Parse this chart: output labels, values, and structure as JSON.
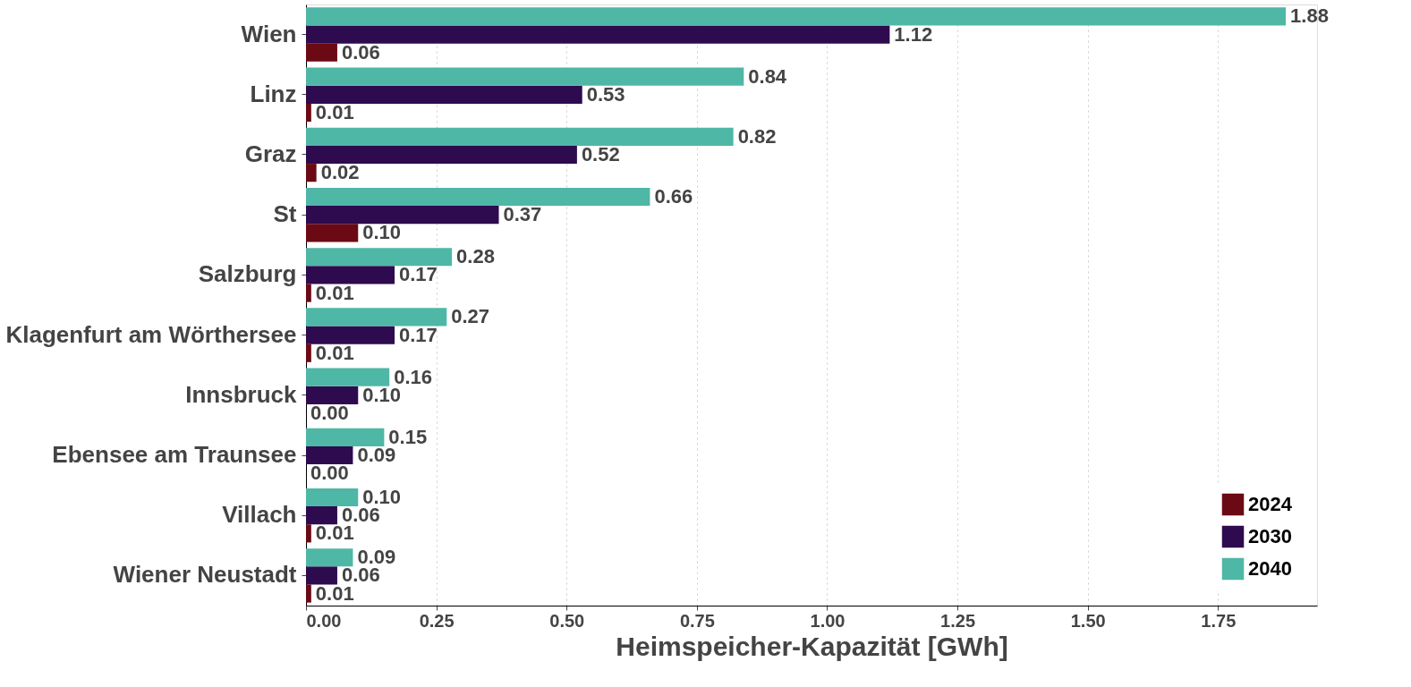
{
  "chart_data": {
    "type": "bar",
    "orientation": "horizontal",
    "xlabel": "Heimspeicher-Kapazität [GWh]",
    "categories": [
      "Wien",
      "Linz",
      "Graz",
      "St",
      "Salzburg",
      "Klagenfurt am Wörthersee",
      "Innsbruck",
      "Ebensee am Traunsee",
      "Villach",
      "Wiener Neustadt"
    ],
    "series": [
      {
        "name": "2024",
        "color": "#6b0a14",
        "values": [
          0.06,
          0.01,
          0.02,
          0.1,
          0.01,
          0.01,
          0.0,
          0.0,
          0.01,
          0.01
        ],
        "value_labels": [
          "0.06",
          "0.01",
          "0.02",
          "0.10",
          "0.01",
          "0.01",
          "0.00",
          "0.00",
          "0.01",
          "0.01"
        ]
      },
      {
        "name": "2030",
        "color": "#2e0a4f",
        "values": [
          1.12,
          0.53,
          0.52,
          0.37,
          0.17,
          0.17,
          0.1,
          0.09,
          0.06,
          0.06
        ],
        "value_labels": [
          "1.12",
          "0.53",
          "0.52",
          "0.37",
          "0.17",
          "0.17",
          "0.10",
          "0.09",
          "0.06",
          "0.06"
        ]
      },
      {
        "name": "2040",
        "color": "#4fb7a6",
        "values": [
          1.88,
          0.84,
          0.82,
          0.66,
          0.28,
          0.27,
          0.16,
          0.15,
          0.1,
          0.09
        ],
        "value_labels": [
          "1.88",
          "0.84",
          "0.82",
          "0.66",
          "0.28",
          "0.27",
          "0.16",
          "0.15",
          "0.10",
          "0.09"
        ]
      }
    ],
    "xlim": [
      0,
      1.94
    ],
    "xticks": [
      {
        "value": 0,
        "label": "0.00"
      },
      {
        "value": 0.25,
        "label": "0.25"
      },
      {
        "value": 0.5,
        "label": "0.50"
      },
      {
        "value": 0.75,
        "label": "0.75"
      },
      {
        "value": 1,
        "label": "1.00"
      },
      {
        "value": 1.25,
        "label": "1.25"
      },
      {
        "value": 1.5,
        "label": "1.50"
      },
      {
        "value": 1.75,
        "label": "1.75"
      }
    ],
    "grid": "x",
    "legend": "bottom right"
  }
}
